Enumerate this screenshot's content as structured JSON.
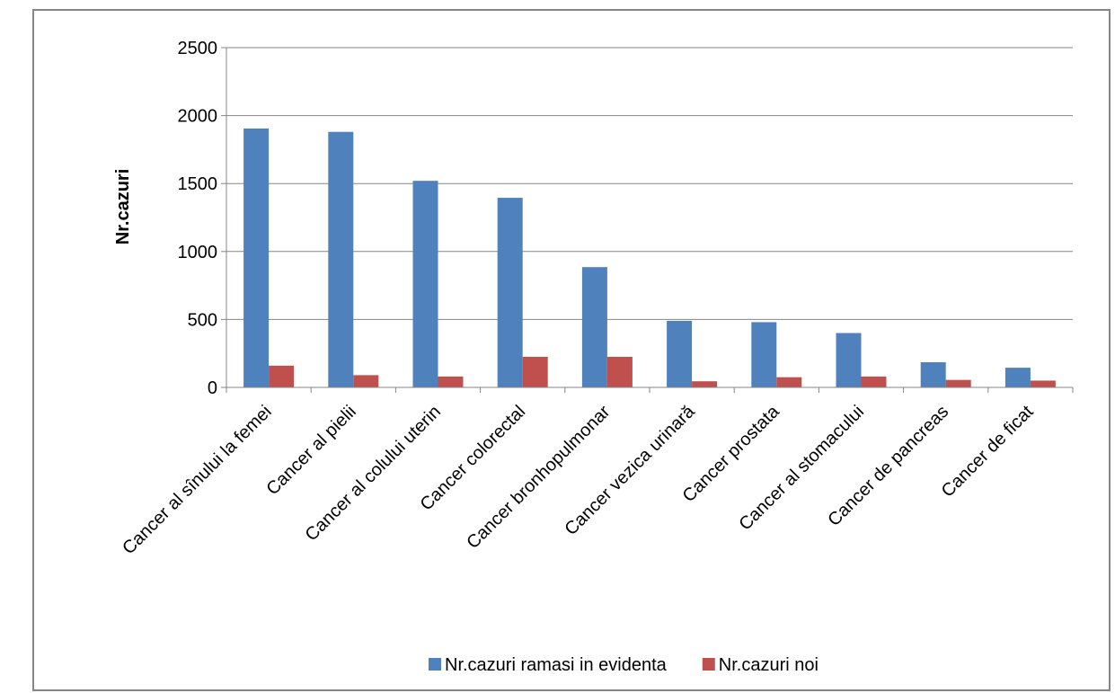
{
  "chart_data": {
    "type": "bar",
    "title": "",
    "xlabel": "",
    "ylabel": "Nr.cazuri",
    "ylim": [
      0,
      2500
    ],
    "yticks": [
      0,
      500,
      1000,
      1500,
      2000,
      2500
    ],
    "grid": true,
    "legend_position": "bottom",
    "categories": [
      "Cancer al sînului la femei",
      "Cancer al pielii",
      "Cancer al colului uterin",
      "Cancer colorectal",
      "Cancer bronhopulmonar",
      "Cancer vezica urinară",
      "Cancer prostata",
      "Cancer al stomacului",
      "Cancer de pancreas",
      "Cancer de ficat"
    ],
    "series": [
      {
        "name": "Nr.cazuri ramasi in evidenta",
        "color": "#4F81BD",
        "values": [
          1905,
          1880,
          1520,
          1395,
          885,
          490,
          480,
          400,
          185,
          145
        ]
      },
      {
        "name": "Nr.cazuri noi",
        "color": "#C0504D",
        "values": [
          160,
          90,
          80,
          225,
          225,
          45,
          75,
          80,
          55,
          50
        ]
      }
    ]
  }
}
